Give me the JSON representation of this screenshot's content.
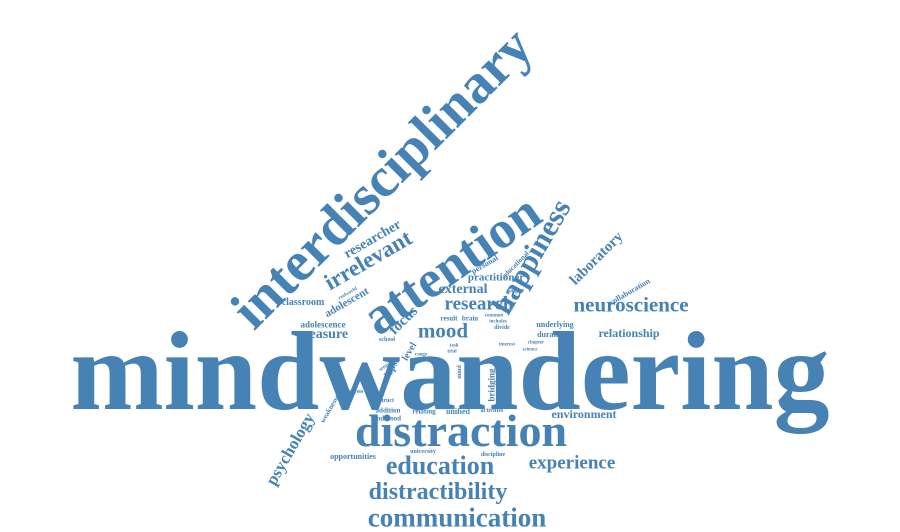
{
  "color": "#4682b4",
  "words": {
    "mindwandering": "mindwandering",
    "interdisciplinary": "interdisciplinary",
    "attention": "attention",
    "distraction": "distraction",
    "happiness": "happiness",
    "education": "education",
    "experience": "experience",
    "distractibility": "distractibility",
    "communication": "communication",
    "research": "research",
    "neuroscience": "neuroscience",
    "mood": "mood",
    "irrelevant": "irrelevant",
    "researcher": "researcher",
    "adolescent": "adolescent",
    "external": "external",
    "focus": "focus",
    "measure": "measure",
    "laboratory": "laboratory",
    "psychology": "psychology",
    "relationship": "relationship",
    "environment": "environment",
    "practitioner": "practitioner",
    "classroom": "classroom",
    "adolescence": "adolescence",
    "collaboration": "collaboration",
    "personal": "personal",
    "educational": "educational",
    "lapse": "lapse",
    "level": "level",
    "result": "result",
    "brain": "brain",
    "underlying": "underlying",
    "duration": "duration",
    "opportunities": "opportunities",
    "weaknesses": "weaknesses",
    "relating": "relating",
    "unified": "unified",
    "activities": "activities",
    "bridging": "bridging",
    "hypothesis": "hypothesis",
    "analysis": "analysis",
    "construct": "construct",
    "addition": "addition",
    "andmood": "andmood",
    "university": "university",
    "discipline": "discipline",
    "school": "school",
    "realworld": "realworld",
    "common": "common",
    "includes": "includes",
    "divide": "divide",
    "mitigate": "mitigate",
    "chapter": "chapter",
    "science": "science",
    "mind": "mind",
    "sampling": "sampling",
    "setting": "setting",
    "range": "range",
    "task": "task",
    "trial": "trial",
    "interest": "interest"
  }
}
